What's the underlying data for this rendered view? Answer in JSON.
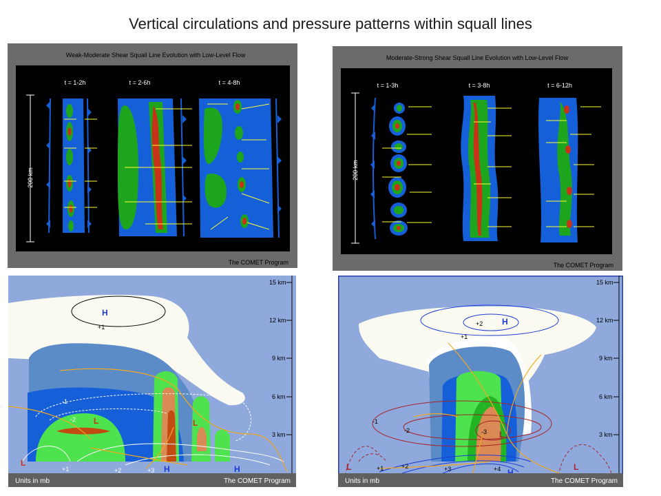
{
  "title": "Vertical circulations and pressure patterns within squall lines",
  "credit": "The COMET Program",
  "top_left": {
    "heading": "Weak-Moderate Shear Squall Line Evolution with Low-Level Flow",
    "scale_label": "200 km",
    "stages": [
      "t = 1-2h",
      "t = 2-6h",
      "t = 4-8h"
    ]
  },
  "top_right": {
    "heading": "Moderate-Strong Shear Squall Line Evolution with Low-Level Flow",
    "scale_label": "200 km",
    "stages": [
      "t = 1-3h",
      "t = 3-8h",
      "t = 6-12h"
    ]
  },
  "bottom_left": {
    "heights": [
      "15 km",
      "12 km",
      "9 km",
      "6 km",
      "3 km"
    ],
    "units": "Units in mb",
    "contour_labels": [
      "+1",
      "-1",
      "-2",
      "+1",
      "+2",
      "+3"
    ],
    "pressure_labels": [
      "H",
      "L",
      "L",
      "L",
      "H",
      "H"
    ]
  },
  "bottom_right": {
    "heights": [
      "15 km",
      "12 km",
      "9 km",
      "6 km",
      "3 km"
    ],
    "units": "Units in mb",
    "contour_labels": [
      "+2",
      "+1",
      "-1",
      "-2",
      "-3",
      "+1",
      "+2",
      "+3",
      "+4"
    ],
    "pressure_labels": [
      "H",
      "L",
      "L",
      "L",
      "H"
    ]
  },
  "colors": {
    "panel_frame": "#6b6b6b",
    "radar_blue": "#1560d8",
    "radar_green": "#1ea51e",
    "radar_red": "#c83218",
    "arrow_yellow": "#ffff33",
    "sky": "#8fa9dc",
    "anvil": "#fbfaf0",
    "light_green": "#4ee34e",
    "core_orange": "#d98a55"
  }
}
